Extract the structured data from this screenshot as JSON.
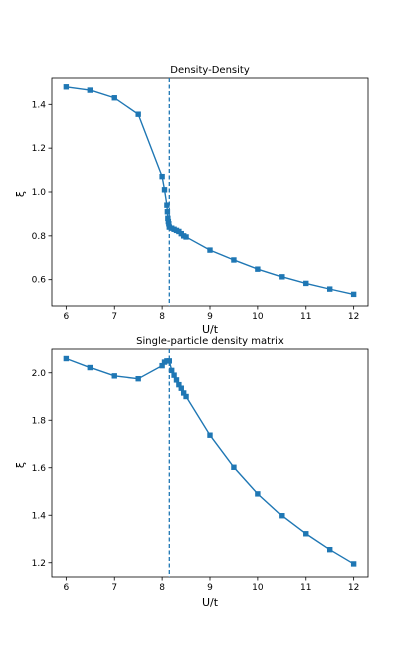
{
  "chart_data": [
    {
      "type": "line",
      "title": "Density-Density",
      "xlabel": "U/t",
      "ylabel": "ξ",
      "xlim": [
        5.7,
        12.3
      ],
      "ylim": [
        0.48,
        1.52
      ],
      "xticks": [
        6,
        7,
        8,
        9,
        10,
        11,
        12
      ],
      "yticks": [
        0.6,
        0.8,
        1.0,
        1.2,
        1.4
      ],
      "ytick_labels": [
        "0.6",
        "0.8",
        "1.0",
        "1.2",
        "1.4"
      ],
      "grid": false,
      "marker": "square",
      "color": "#1f77b4",
      "vline": 8.15,
      "x": [
        6.0,
        6.5,
        7.0,
        7.5,
        8.0,
        8.05,
        8.1,
        8.11,
        8.12,
        8.13,
        8.14,
        8.15,
        8.2,
        8.25,
        8.3,
        8.35,
        8.4,
        8.45,
        8.5,
        9.0,
        9.5,
        10.0,
        10.5,
        11.0,
        11.5,
        12.0
      ],
      "y": [
        1.48,
        1.465,
        1.43,
        1.355,
        1.07,
        1.01,
        0.94,
        0.91,
        0.88,
        0.865,
        0.855,
        0.84,
        0.835,
        0.83,
        0.825,
        0.82,
        0.81,
        0.8,
        0.795,
        0.735,
        0.69,
        0.648,
        0.613,
        0.583,
        0.557,
        0.533
      ]
    },
    {
      "type": "line",
      "title": "Single-particle density matrix",
      "xlabel": "U/t",
      "ylabel": "ξ",
      "xlim": [
        5.7,
        12.3
      ],
      "ylim": [
        1.14,
        2.1
      ],
      "xticks": [
        6,
        7,
        8,
        9,
        10,
        11,
        12
      ],
      "yticks": [
        1.2,
        1.4,
        1.6,
        1.8,
        2.0
      ],
      "ytick_labels": [
        "1.2",
        "1.4",
        "1.6",
        "1.8",
        "2.0"
      ],
      "grid": false,
      "marker": "square",
      "color": "#1f77b4",
      "vline": 8.15,
      "x": [
        6.0,
        6.5,
        7.0,
        7.5,
        8.0,
        8.05,
        8.1,
        8.15,
        8.2,
        8.25,
        8.3,
        8.35,
        8.4,
        8.45,
        8.5,
        9.0,
        9.5,
        10.0,
        10.5,
        11.0,
        11.5,
        12.0
      ],
      "y": [
        2.06,
        2.022,
        1.987,
        1.975,
        2.03,
        2.045,
        2.05,
        2.05,
        2.01,
        1.99,
        1.97,
        1.95,
        1.935,
        1.915,
        1.9,
        1.737,
        1.602,
        1.49,
        1.398,
        1.322,
        1.255,
        1.195
      ]
    }
  ]
}
